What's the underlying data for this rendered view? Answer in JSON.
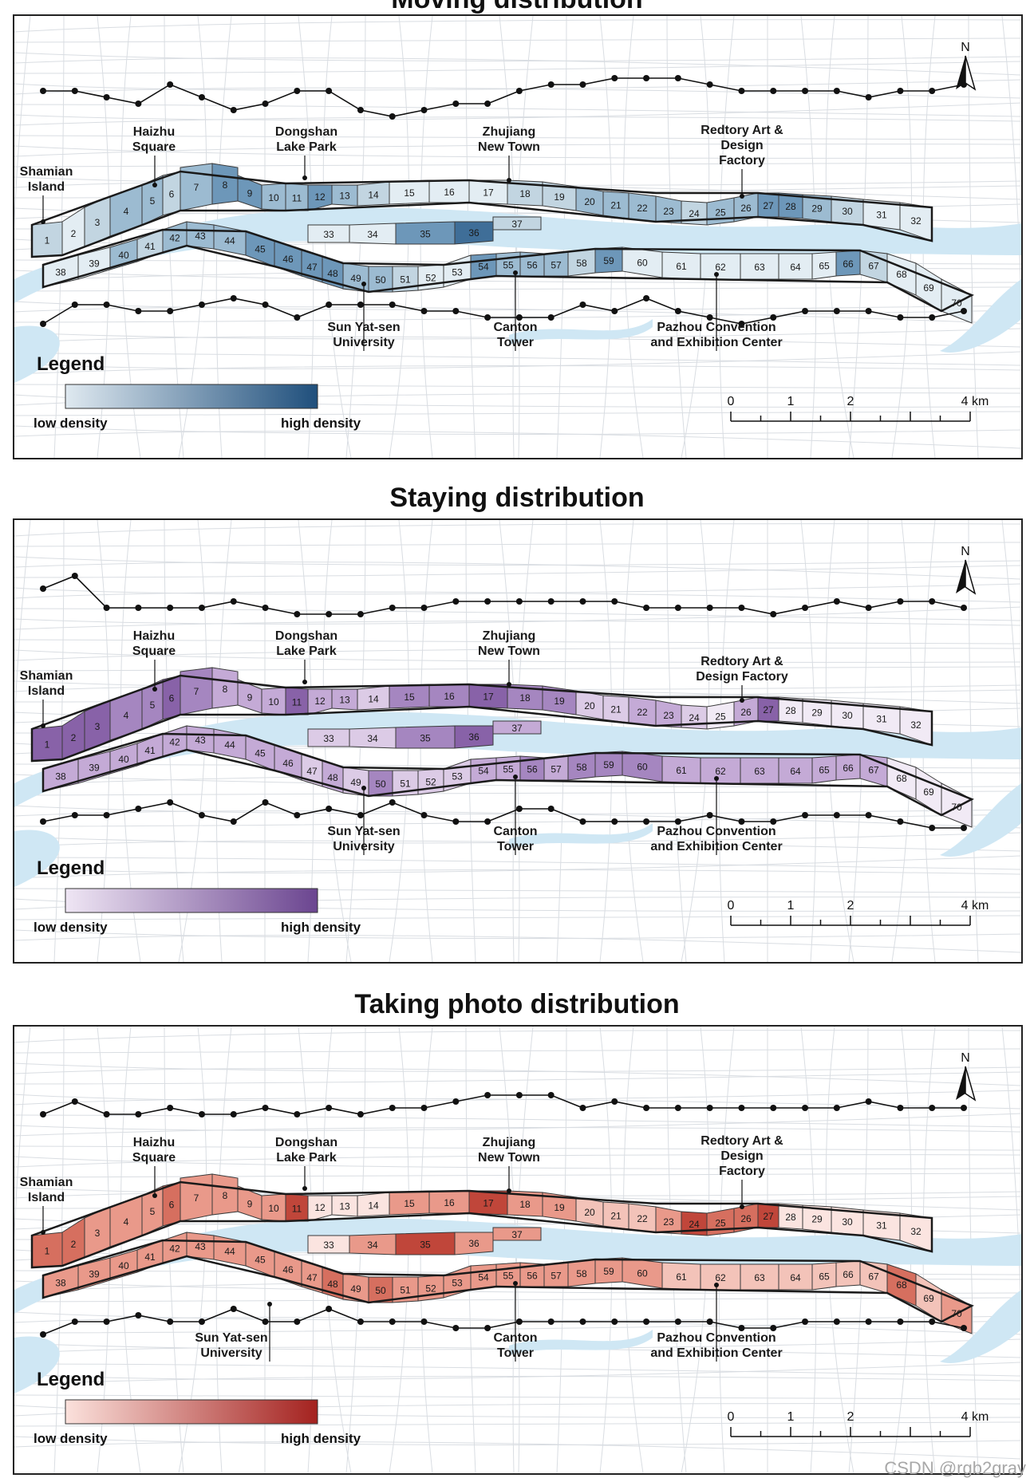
{
  "panels": [
    {
      "title": "Moving distribution",
      "colors": [
        "#e3edf3",
        "#c2d5e1",
        "#9cbbd1",
        "#6d97b9",
        "#3f6e98",
        "#1f4f7c"
      ],
      "legend_low": "#dfe9f0",
      "legend_high": "#1f4f7c",
      "north_density": [
        2,
        1,
        2,
        3,
        3,
        2,
        3,
        4,
        4,
        3,
        3,
        4,
        3,
        2,
        1,
        1,
        1,
        2,
        2,
        3,
        3,
        3,
        3,
        2,
        3,
        3,
        4,
        4,
        3,
        2,
        1,
        1,
        1,
        1,
        4,
        5,
        2,
        1,
        1,
        3,
        2,
        3,
        3,
        3,
        4,
        4,
        4,
        4,
        3,
        3,
        2,
        1,
        1,
        4,
        3,
        3,
        3,
        2,
        4,
        1,
        1,
        1,
        1,
        1,
        1,
        4,
        2,
        1,
        1,
        1
      ],
      "south_density": [],
      "north_line": [
        4,
        4,
        5,
        6,
        3,
        5,
        7,
        6,
        4,
        4,
        7,
        8,
        7,
        6,
        6,
        4,
        3,
        3,
        2,
        2,
        2,
        3,
        4,
        4,
        4,
        4,
        5,
        4,
        4,
        3
      ],
      "south_line": [
        7,
        4,
        4,
        5,
        5,
        4,
        3,
        4,
        6,
        4,
        4,
        4,
        5,
        5,
        6,
        6,
        6,
        4,
        5,
        3,
        5,
        6,
        7,
        6,
        5,
        5,
        5,
        6,
        6,
        5
      ]
    },
    {
      "title": "Staying distribution",
      "colors": [
        "#f1eaf5",
        "#dccbe6",
        "#c4aad6",
        "#a586c0",
        "#8862a8",
        "#6b4590"
      ],
      "legend_low": "#efe6f4",
      "legend_high": "#6b4590",
      "north_density": [
        5,
        5,
        5,
        4,
        4,
        5,
        4,
        3,
        3,
        3,
        5,
        3,
        3,
        2,
        4,
        4,
        5,
        4,
        4,
        2,
        2,
        3,
        3,
        2,
        1,
        3,
        5,
        1,
        1,
        1,
        1,
        1,
        2,
        2,
        4,
        5,
        3,
        3,
        3,
        3,
        3,
        3,
        3,
        3,
        3,
        3,
        2,
        3,
        2,
        4,
        2,
        2,
        2,
        3,
        3,
        4,
        3,
        4,
        4,
        4,
        3,
        3,
        3,
        3,
        3,
        3,
        3,
        1,
        1,
        1
      ],
      "south_density": [],
      "north_line": [
        3,
        1,
        6,
        6,
        6,
        6,
        5,
        6,
        7,
        7,
        7,
        6,
        6,
        5,
        5,
        5,
        5,
        5,
        5,
        6,
        6,
        6,
        6,
        7,
        6,
        5,
        6,
        5,
        5,
        6
      ],
      "south_line": [
        6,
        5,
        5,
        4,
        3,
        5,
        6,
        3,
        5,
        4,
        5,
        3,
        5,
        6,
        6,
        4,
        4,
        6,
        6,
        6,
        6,
        5,
        6,
        6,
        5,
        5,
        5,
        6,
        7,
        7
      ]
    },
    {
      "title": "Taking photo distribution",
      "colors": [
        "#fbe4e0",
        "#f3c3b9",
        "#e9998a",
        "#d66f5f",
        "#c0463a",
        "#a4221f"
      ],
      "legend_low": "#fbe1dc",
      "legend_high": "#a4221f",
      "north_density": [
        4,
        4,
        3,
        3,
        3,
        4,
        3,
        3,
        3,
        3,
        5,
        1,
        1,
        1,
        3,
        3,
        5,
        3,
        3,
        2,
        2,
        2,
        3,
        5,
        4,
        4,
        5,
        1,
        1,
        1,
        1,
        1,
        1,
        3,
        5,
        3,
        3,
        3,
        3,
        3,
        3,
        3,
        3,
        3,
        3,
        3,
        3,
        4,
        3,
        4,
        3,
        3,
        3,
        3,
        3,
        3,
        3,
        3,
        3,
        3,
        2,
        2,
        2,
        2,
        2,
        2,
        2,
        4,
        2,
        3
      ],
      "south_density": [],
      "north_line": [
        6,
        4,
        6,
        6,
        5,
        6,
        6,
        5,
        6,
        5,
        6,
        5,
        5,
        4,
        3,
        3,
        3,
        5,
        4,
        5,
        5,
        5,
        5,
        5,
        5,
        5,
        4,
        5,
        5,
        5
      ],
      "south_line": [
        7,
        5,
        5,
        4,
        5,
        5,
        3,
        5,
        5,
        3,
        5,
        5,
        5,
        6,
        6,
        5,
        5,
        5,
        5,
        5,
        5,
        5,
        6,
        6,
        5,
        5,
        5,
        5,
        5,
        6
      ]
    }
  ],
  "landmarks": {
    "shamian": "Shamian\nIsland",
    "haizhu": "Haizhu\nSquare",
    "dongshan": "Dongshan\nLake Park",
    "zhujiang": "Zhujiang\nNew Town",
    "redtory_a": "Redtory Art &\nDesign\nFactory",
    "redtory_b": "Redtory Art &\nDesign Factory",
    "sysu": "Sun Yat-sen\nUniversity",
    "canton": "Canton\nTower",
    "pazhou": "Pazhou Convention\nand Exhibition Center"
  },
  "legend": {
    "title": "Legend",
    "low": "low density",
    "high": "high density"
  },
  "scalebar": {
    "ticks": [
      "0",
      "1",
      "2",
      "4 km"
    ]
  },
  "north": "N",
  "watermark": "CSDN @rgb2gray"
}
